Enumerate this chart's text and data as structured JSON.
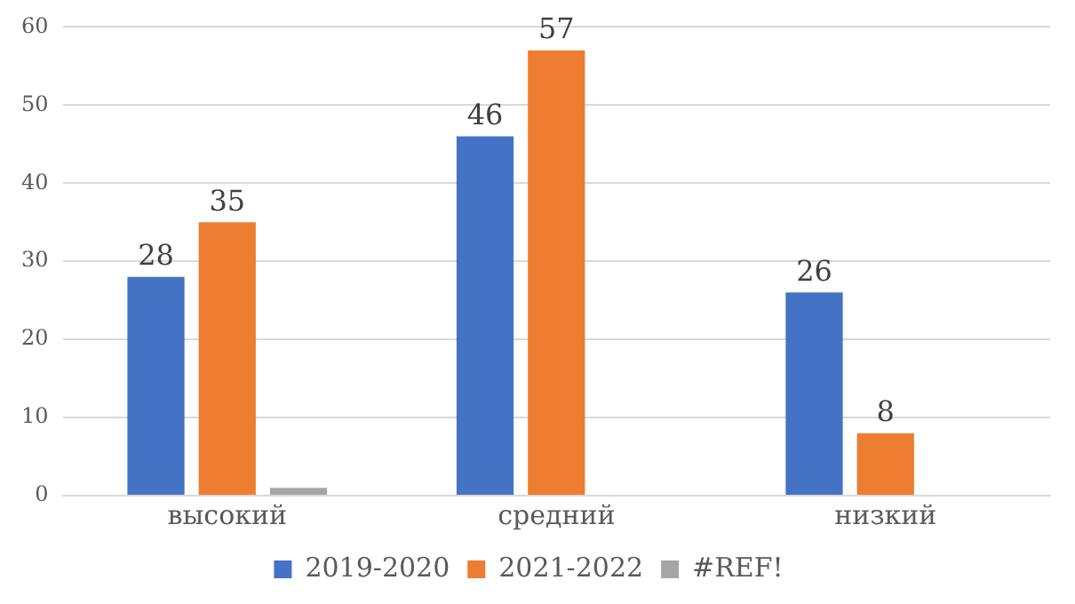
{
  "chart_data": {
    "type": "bar",
    "categories": [
      "высокий",
      "средний",
      "низкий"
    ],
    "series": [
      {
        "name": "2019-2020",
        "color": "#4472c4",
        "values": [
          28,
          46,
          26
        ],
        "value_labels": [
          "28",
          "46",
          "26"
        ]
      },
      {
        "name": "2021-2022",
        "color": "#ed7d31",
        "values": [
          35,
          57,
          8
        ],
        "value_labels": [
          "35",
          "57",
          "8"
        ]
      },
      {
        "name": "#REF!",
        "color": "#a5a5a5",
        "values": [
          1,
          null,
          null
        ],
        "value_labels": [
          null,
          null,
          null
        ]
      }
    ],
    "ylim": [
      0,
      60
    ],
    "yticks": [
      0,
      10,
      20,
      30,
      40,
      50,
      60
    ],
    "grid": "y",
    "legend": "bottom"
  }
}
